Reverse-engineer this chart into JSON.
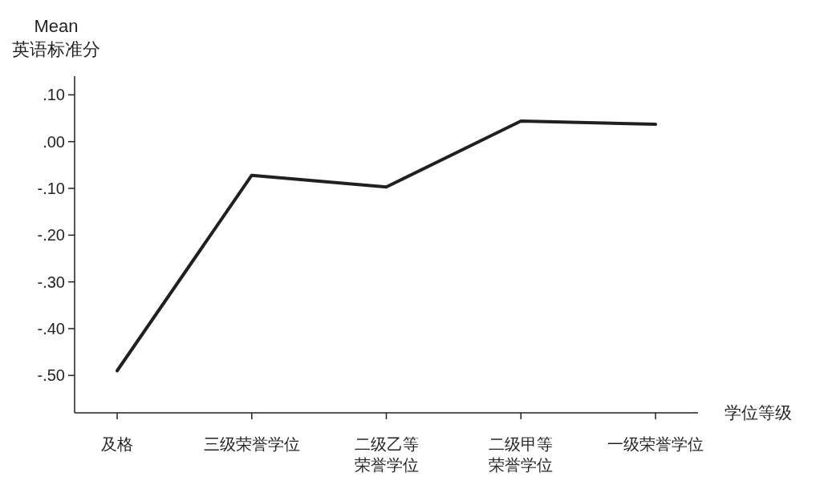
{
  "chart_data": {
    "type": "line",
    "ylabel": "Mean\n英语标准分",
    "xlabel": "学位等级",
    "categories": [
      "及格",
      "三级荣誉学位",
      "二级乙等荣誉学位",
      "二级甲等荣誉学位",
      "一级荣誉学位"
    ],
    "series": [
      {
        "color": "#231f20",
        "values": [
          -0.49,
          -0.072,
          -0.097,
          0.044,
          0.037
        ]
      }
    ],
    "ylim": [
      -0.58,
      0.14
    ],
    "yticks": [
      {
        "value": -0.5,
        "label": "-.50"
      },
      {
        "value": -0.4,
        "label": "-.40"
      },
      {
        "value": -0.3,
        "label": "-.30"
      },
      {
        "value": -0.2,
        "label": "-.20"
      },
      {
        "value": -0.1,
        "label": "-.10"
      },
      {
        "value": 0,
        "label": ".00"
      },
      {
        "value": 0.1,
        "label": ".10"
      }
    ],
    "grid": false,
    "marker": "none",
    "line_style": "solid"
  }
}
